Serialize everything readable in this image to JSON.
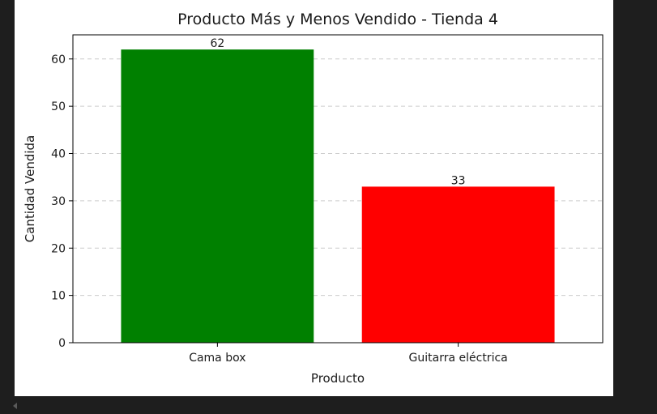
{
  "chart_data": {
    "type": "bar",
    "title": "Producto Más y Menos Vendido - Tienda 4",
    "xlabel": "Producto",
    "ylabel": "Cantidad Vendida",
    "categories": [
      "Cama box",
      "Guitarra eléctrica"
    ],
    "values": [
      62,
      33
    ],
    "bar_colors": [
      "#008000",
      "#ff0000"
    ],
    "data_labels": [
      "62",
      "33"
    ],
    "ylim": [
      0,
      65.1
    ],
    "yticks": [
      0,
      10,
      20,
      30,
      40,
      50,
      60
    ],
    "grid": "y-dashed",
    "legend": "none"
  },
  "colors": {
    "background": "#1e1e1e",
    "figure": "#ffffff",
    "grid": "#cccccc"
  }
}
